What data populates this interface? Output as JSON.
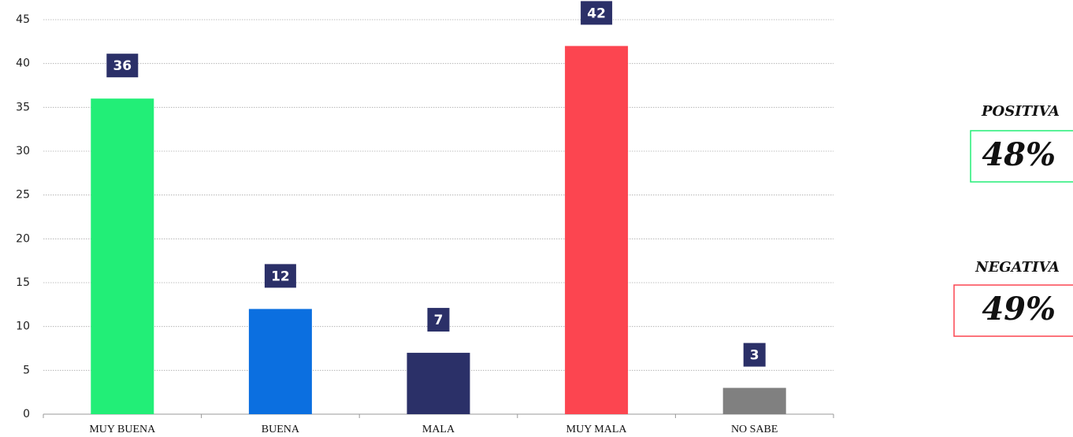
{
  "chart_data": {
    "type": "bar",
    "categories": [
      "MUY BUENA",
      "BUENA",
      "MALA",
      "MUY MALA",
      "NO SABE"
    ],
    "values": [
      36,
      12,
      7,
      42,
      3
    ],
    "colors": [
      "#22ee77",
      "#0b6fe0",
      "#2b3068",
      "#fc4550",
      "#808080"
    ],
    "ylim": [
      0,
      45
    ],
    "yticks": [
      0,
      5,
      10,
      15,
      20,
      25,
      30,
      35,
      40,
      45
    ],
    "grid": true,
    "label_box_color": "#2b3068"
  },
  "summary": [
    {
      "label": "POSITIVA",
      "value_label": "48%",
      "color": "#22ee77"
    },
    {
      "label": "NEGATIVA",
      "value_label": "49%",
      "color": "#fc4550"
    }
  ]
}
